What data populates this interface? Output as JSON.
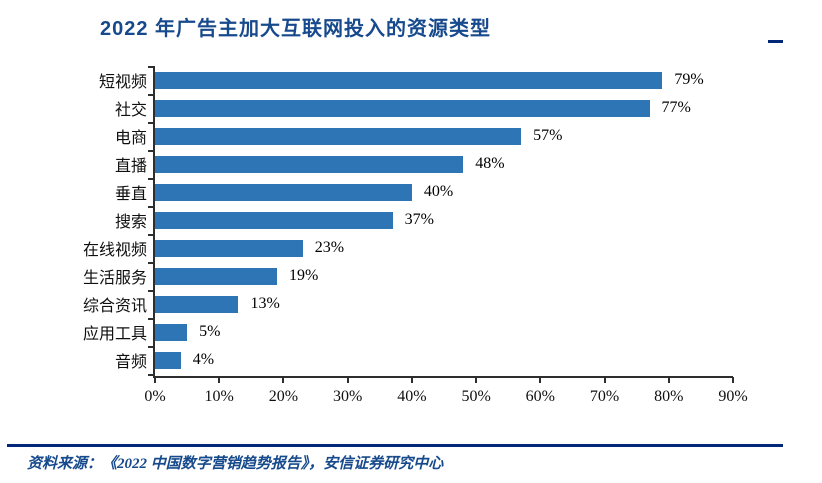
{
  "title": "2022 年广告主加大互联网投入的资源类型",
  "chart_data": {
    "type": "bar",
    "orientation": "horizontal",
    "title": "2022 年广告主加大互联网投入的资源类型",
    "categories": [
      "短视频",
      "社交",
      "电商",
      "直播",
      "垂直",
      "搜索",
      "在线视频",
      "生活服务",
      "综合资讯",
      "应用工具",
      "音频"
    ],
    "values": [
      79,
      77,
      57,
      48,
      40,
      37,
      23,
      19,
      13,
      5,
      4
    ],
    "value_labels": [
      "79%",
      "77%",
      "57%",
      "48%",
      "40%",
      "37%",
      "23%",
      "19%",
      "13%",
      "5%",
      "4%"
    ],
    "x_ticks": [
      "0%",
      "10%",
      "20%",
      "30%",
      "40%",
      "50%",
      "60%",
      "70%",
      "80%",
      "90%"
    ],
    "xlim": [
      0,
      90
    ],
    "xlabel": "",
    "ylabel": "",
    "grid": false,
    "legend": null,
    "bar_color": "#2E75B6"
  },
  "footer": {
    "source": "资料来源：《2022 中国数字营销趋势报告》，安信证券研究中心"
  },
  "colors": {
    "bar": "#2E75B6",
    "navy_rule": "#002878",
    "title_text": "#174A8C",
    "axis": "#2e2e2e"
  }
}
